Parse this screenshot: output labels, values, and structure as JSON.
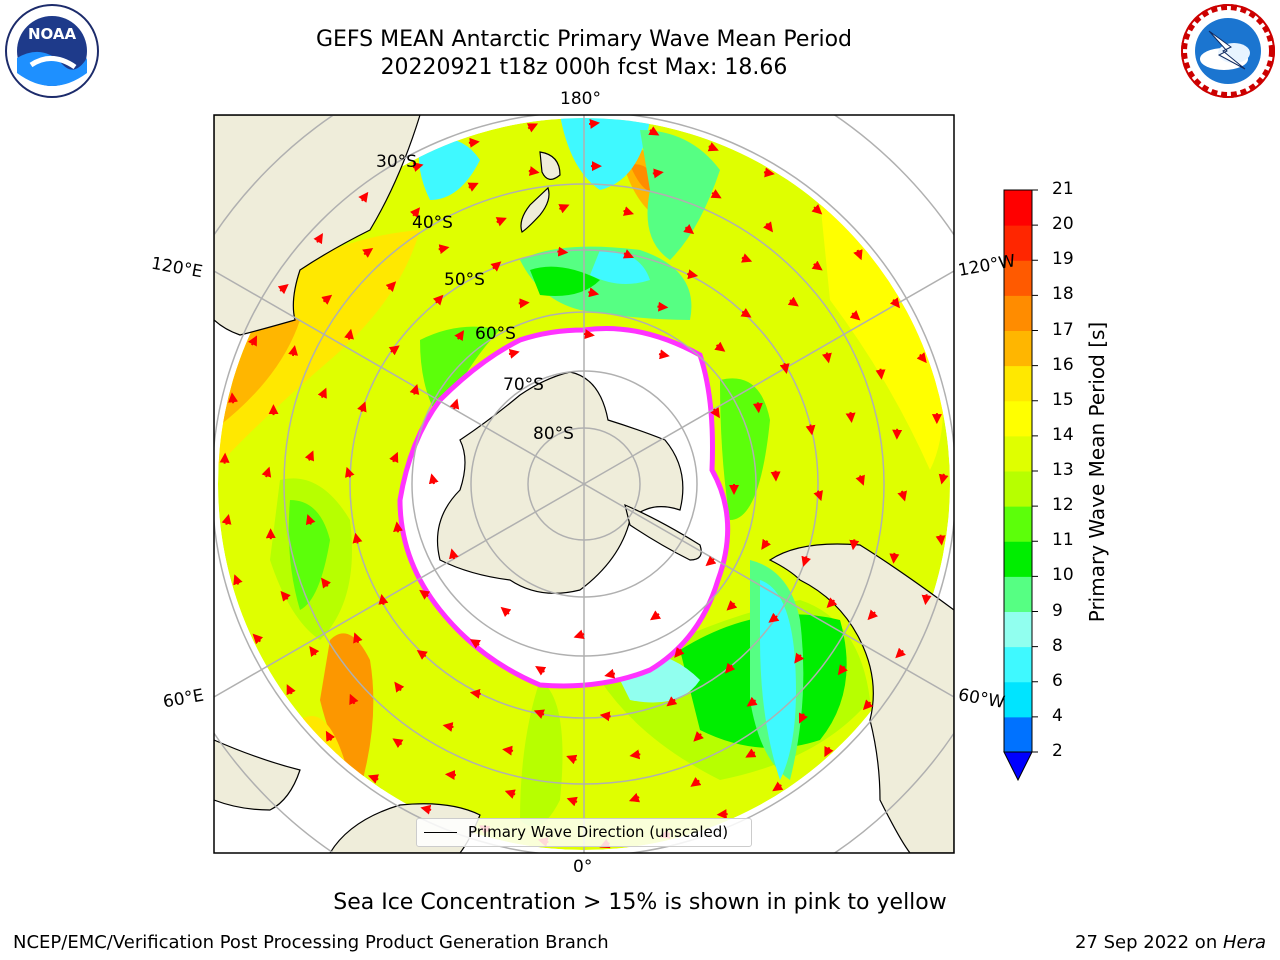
{
  "title": {
    "line1": "GEFS MEAN Antarctic Primary Wave Mean Period",
    "line2": "20220921 t18z 000h fcst   Max: 18.66"
  },
  "logos": {
    "left": "noaa-logo",
    "right": "nws-logo"
  },
  "map": {
    "projection": "south-polar-stereographic",
    "variable": "Primary Wave Mean Period",
    "longitude_labels": {
      "top": "180°",
      "bottom": "0°",
      "upper_left": "120°E",
      "upper_right": "120°W",
      "lower_left": "60°E",
      "lower_right": "60°W"
    },
    "latitude_labels": [
      "30°S",
      "40°S",
      "50°S",
      "60°S",
      "70°S",
      "80°S"
    ],
    "legend": {
      "label": "Primary Wave Direction (unscaled)"
    },
    "colors": {
      "land": "#efedda",
      "ice_edge": "#ff33ff",
      "arrows": "#ff0000",
      "grid": "#b0b0b0"
    }
  },
  "colorbar": {
    "label": "Primary Wave Mean Period [s]",
    "ticks": [
      "2",
      "4",
      "6",
      "8",
      "9",
      "10",
      "11",
      "12",
      "13",
      "14",
      "15",
      "16",
      "17",
      "18",
      "19",
      "20",
      "21"
    ],
    "colors": [
      "#0000ff",
      "#0072ff",
      "#00e4ff",
      "#3ff9ff",
      "#91ffef",
      "#56ff83",
      "#00ee00",
      "#5cff0a",
      "#b7ff00",
      "#dfff00",
      "#ffff00",
      "#ffe800",
      "#ffb600",
      "#ff8c00",
      "#ff5a00",
      "#ff2600",
      "#ff0000"
    ]
  },
  "footer": {
    "ice_note": "Sea Ice Concentration > 15% is shown in pink to yellow",
    "credit": "NCEP/EMC/Verification Post Processing Product Generation Branch",
    "date": "27 Sep 2022 on ",
    "host": "Hera"
  }
}
